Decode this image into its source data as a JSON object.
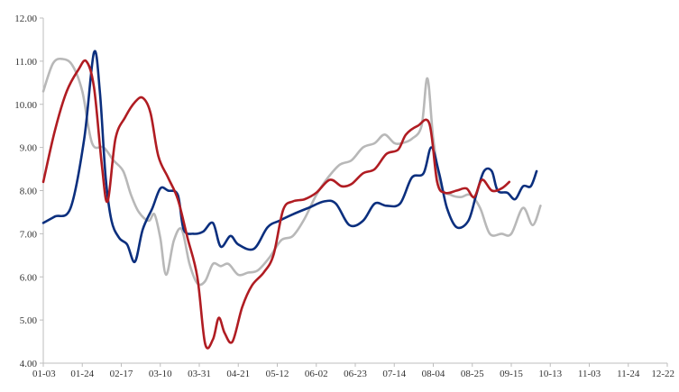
{
  "chart_data": {
    "type": "line",
    "title": "",
    "xlabel": "",
    "ylabel": "",
    "ylim": [
      4.0,
      12.0
    ],
    "yticks": [
      "4.00",
      "5.00",
      "6.00",
      "7.00",
      "8.00",
      "9.00",
      "10.00",
      "11.00",
      "12.00"
    ],
    "xticks": [
      "01-03",
      "01-24",
      "02-17",
      "03-10",
      "03-31",
      "04-21",
      "05-12",
      "06-02",
      "06-23",
      "07-14",
      "08-04",
      "08-25",
      "09-15",
      "10-13",
      "11-03",
      "11-24",
      "12-22"
    ],
    "grid": false,
    "legend": "none",
    "series": [
      {
        "color": "#0b2f7e",
        "values": [
          [
            0,
            7.25
          ],
          [
            0.3,
            7.4
          ],
          [
            0.7,
            7.6
          ],
          [
            1.05,
            9.2
          ],
          [
            1.3,
            11.2
          ],
          [
            1.45,
            10.3
          ],
          [
            1.6,
            8.3
          ],
          [
            1.75,
            7.3
          ],
          [
            1.95,
            6.9
          ],
          [
            2.15,
            6.75
          ],
          [
            2.35,
            6.35
          ],
          [
            2.55,
            7.1
          ],
          [
            2.8,
            7.6
          ],
          [
            3.0,
            8.05
          ],
          [
            3.2,
            8.0
          ],
          [
            3.45,
            7.9
          ],
          [
            3.6,
            7.1
          ],
          [
            3.85,
            7.0
          ],
          [
            4.1,
            7.05
          ],
          [
            4.35,
            7.25
          ],
          [
            4.55,
            6.7
          ],
          [
            4.8,
            6.95
          ],
          [
            5.0,
            6.75
          ],
          [
            5.4,
            6.65
          ],
          [
            5.75,
            7.15
          ],
          [
            6.05,
            7.3
          ],
          [
            6.4,
            7.45
          ],
          [
            6.8,
            7.6
          ],
          [
            7.2,
            7.75
          ],
          [
            7.5,
            7.7
          ],
          [
            7.85,
            7.2
          ],
          [
            8.2,
            7.3
          ],
          [
            8.5,
            7.7
          ],
          [
            8.8,
            7.65
          ],
          [
            9.15,
            7.7
          ],
          [
            9.45,
            8.3
          ],
          [
            9.75,
            8.4
          ],
          [
            9.95,
            9.0
          ],
          [
            10.15,
            8.4
          ],
          [
            10.35,
            7.6
          ],
          [
            10.6,
            7.15
          ],
          [
            10.9,
            7.3
          ],
          [
            11.1,
            7.9
          ],
          [
            11.3,
            8.45
          ],
          [
            11.5,
            8.45
          ],
          [
            11.65,
            8.0
          ],
          [
            11.9,
            7.95
          ],
          [
            12.1,
            7.8
          ],
          [
            12.3,
            8.1
          ],
          [
            12.5,
            8.1
          ],
          [
            12.65,
            8.45
          ]
        ]
      },
      {
        "color": "#b01c22",
        "values": [
          [
            0,
            8.2
          ],
          [
            0.3,
            9.4
          ],
          [
            0.6,
            10.3
          ],
          [
            0.9,
            10.8
          ],
          [
            1.1,
            11.0
          ],
          [
            1.3,
            10.4
          ],
          [
            1.5,
            8.6
          ],
          [
            1.65,
            7.75
          ],
          [
            1.85,
            9.2
          ],
          [
            2.1,
            9.7
          ],
          [
            2.35,
            10.05
          ],
          [
            2.55,
            10.15
          ],
          [
            2.75,
            9.8
          ],
          [
            2.95,
            8.8
          ],
          [
            3.2,
            8.3
          ],
          [
            3.45,
            7.8
          ],
          [
            3.7,
            6.9
          ],
          [
            3.95,
            6.0
          ],
          [
            4.15,
            4.45
          ],
          [
            4.35,
            4.55
          ],
          [
            4.5,
            5.05
          ],
          [
            4.65,
            4.7
          ],
          [
            4.85,
            4.5
          ],
          [
            5.1,
            5.3
          ],
          [
            5.35,
            5.8
          ],
          [
            5.65,
            6.1
          ],
          [
            5.9,
            6.5
          ],
          [
            6.15,
            7.55
          ],
          [
            6.4,
            7.75
          ],
          [
            6.7,
            7.8
          ],
          [
            7.0,
            7.95
          ],
          [
            7.35,
            8.25
          ],
          [
            7.65,
            8.1
          ],
          [
            7.9,
            8.15
          ],
          [
            8.2,
            8.4
          ],
          [
            8.5,
            8.5
          ],
          [
            8.8,
            8.85
          ],
          [
            9.1,
            8.95
          ],
          [
            9.3,
            9.3
          ],
          [
            9.6,
            9.5
          ],
          [
            9.9,
            9.55
          ],
          [
            10.1,
            8.2
          ],
          [
            10.3,
            7.95
          ],
          [
            10.6,
            8.0
          ],
          [
            10.85,
            8.05
          ],
          [
            11.05,
            7.85
          ],
          [
            11.25,
            8.25
          ],
          [
            11.5,
            8.0
          ],
          [
            11.75,
            8.05
          ],
          [
            11.95,
            8.2
          ]
        ]
      },
      {
        "color": "#b8b8b8",
        "values": [
          [
            0,
            10.3
          ],
          [
            0.25,
            10.95
          ],
          [
            0.5,
            11.05
          ],
          [
            0.75,
            10.9
          ],
          [
            1.0,
            10.3
          ],
          [
            1.25,
            9.1
          ],
          [
            1.55,
            9.0
          ],
          [
            1.8,
            8.7
          ],
          [
            2.05,
            8.45
          ],
          [
            2.25,
            7.9
          ],
          [
            2.45,
            7.5
          ],
          [
            2.7,
            7.3
          ],
          [
            2.85,
            7.45
          ],
          [
            3.0,
            6.9
          ],
          [
            3.15,
            6.05
          ],
          [
            3.35,
            6.85
          ],
          [
            3.55,
            7.1
          ],
          [
            3.75,
            6.3
          ],
          [
            3.95,
            5.85
          ],
          [
            4.15,
            5.9
          ],
          [
            4.35,
            6.3
          ],
          [
            4.55,
            6.25
          ],
          [
            4.75,
            6.3
          ],
          [
            5.0,
            6.05
          ],
          [
            5.25,
            6.1
          ],
          [
            5.5,
            6.15
          ],
          [
            5.8,
            6.45
          ],
          [
            6.1,
            6.85
          ],
          [
            6.4,
            6.95
          ],
          [
            6.7,
            7.35
          ],
          [
            7.0,
            7.9
          ],
          [
            7.3,
            8.3
          ],
          [
            7.6,
            8.6
          ],
          [
            7.9,
            8.7
          ],
          [
            8.2,
            9.0
          ],
          [
            8.5,
            9.1
          ],
          [
            8.75,
            9.3
          ],
          [
            9.0,
            9.1
          ],
          [
            9.2,
            9.1
          ],
          [
            9.45,
            9.2
          ],
          [
            9.7,
            9.5
          ],
          [
            9.85,
            10.6
          ],
          [
            10.0,
            9.2
          ],
          [
            10.2,
            8.1
          ],
          [
            10.45,
            7.9
          ],
          [
            10.7,
            7.85
          ],
          [
            10.95,
            7.9
          ],
          [
            11.2,
            7.6
          ],
          [
            11.45,
            7.0
          ],
          [
            11.75,
            7.0
          ],
          [
            12.0,
            7.0
          ],
          [
            12.3,
            7.6
          ],
          [
            12.55,
            7.2
          ],
          [
            12.75,
            7.65
          ]
        ]
      }
    ]
  }
}
